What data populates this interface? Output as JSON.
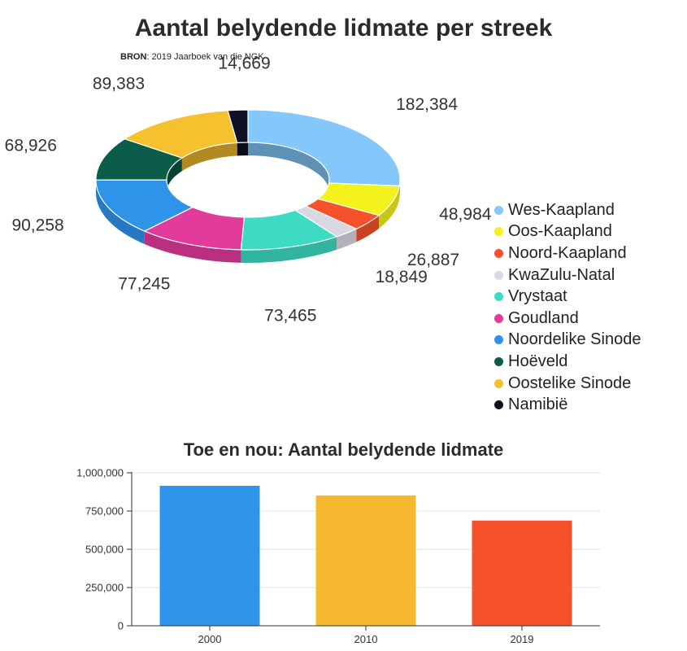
{
  "title": "Aantal belydende lidmate per streek",
  "source": {
    "label": "BRON",
    "text": ": 2019 Jaarboek van die NGK"
  },
  "chart_data": [
    {
      "type": "pie",
      "variant": "donut-3d",
      "legend_position": "right",
      "slices": [
        {
          "name": "Wes-Kaapland",
          "value": 182384,
          "label": "182,384",
          "color": "#84c8fb"
        },
        {
          "name": "Oos-Kaapland",
          "value": 48984,
          "label": "48,984",
          "color": "#f4f21c"
        },
        {
          "name": "Noord-Kaapland",
          "value": 26887,
          "label": "26,887",
          "color": "#f5522b"
        },
        {
          "name": "KwaZulu-Natal",
          "value": 18849,
          "label": "18,849",
          "color": "#d8d8e2"
        },
        {
          "name": "Vrystaat",
          "value": 73465,
          "label": "73,465",
          "color": "#3ddbc3"
        },
        {
          "name": "Goudland",
          "value": 77245,
          "label": "77,245",
          "color": "#e33b9c"
        },
        {
          "name": "Noordelike Sinode",
          "value": 90258,
          "label": "90,258",
          "color": "#2e94ea"
        },
        {
          "name": "Hoëveld",
          "value": 68926,
          "label": "68,926",
          "color": "#0b5c48"
        },
        {
          "name": "Oostelike Sinode",
          "value": 89383,
          "label": "89,383",
          "color": "#f6c12e"
        },
        {
          "name": "Namibië",
          "value": 14669,
          "label": "14,669",
          "color": "#0f1023"
        }
      ]
    },
    {
      "type": "bar",
      "title": "Toe en nou: Aantal belydende lidmate",
      "categories": [
        "2000",
        "2010",
        "2019"
      ],
      "values": [
        915000,
        852000,
        688000
      ],
      "colors": [
        "#2e94ea",
        "#f6b82e",
        "#f5522b"
      ],
      "ylim": [
        0,
        1000000
      ],
      "yticks": [
        0,
        250000,
        500000,
        750000,
        1000000
      ],
      "ytick_labels": [
        "0",
        "250,000",
        "500,000",
        "750,000",
        "1,000,000"
      ],
      "grid": true
    }
  ]
}
